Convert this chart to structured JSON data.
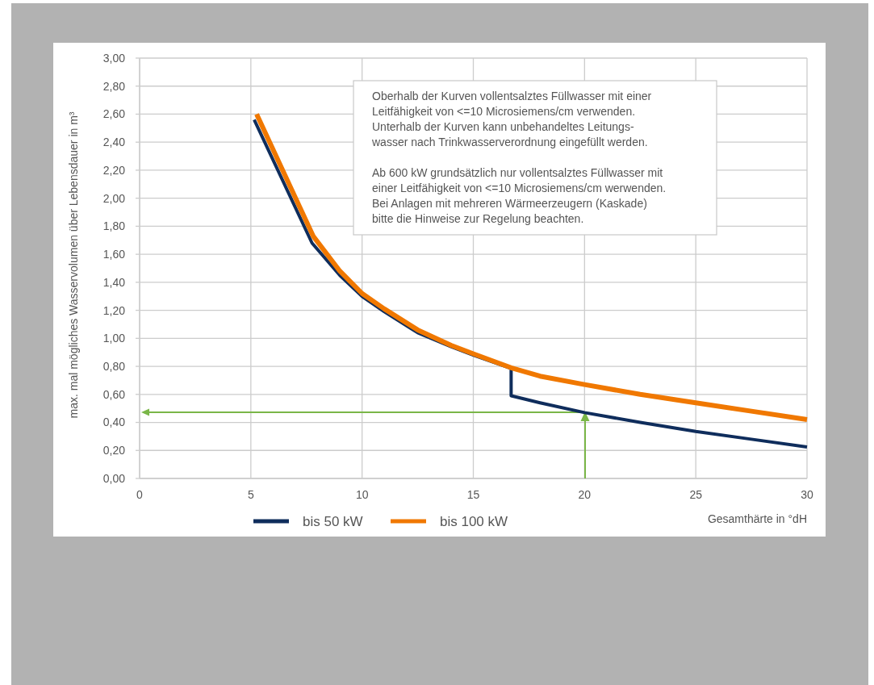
{
  "chart_data": {
    "type": "line",
    "xlabel": "Gesamthärte in °dH",
    "ylabel": "max. mal mögliches Wasservolumen über Lebensdauer in m³",
    "xlim": [
      0,
      30
    ],
    "xticks": [
      0,
      5,
      10,
      15,
      20,
      25,
      30
    ],
    "ylim": [
      0,
      3
    ],
    "yticks": [
      {
        "value": 0,
        "label": "0,00"
      },
      {
        "value": 0.2,
        "label": "0,20"
      },
      {
        "value": 0.4,
        "label": "0,40"
      },
      {
        "value": 0.6,
        "label": "0,60"
      },
      {
        "value": 0.8,
        "label": "0,80"
      },
      {
        "value": 1,
        "label": "1,00"
      },
      {
        "value": 1.2,
        "label": "1,20"
      },
      {
        "value": 1.4,
        "label": "1,40"
      },
      {
        "value": 1.6,
        "label": "1,60"
      },
      {
        "value": 1.8,
        "label": "1,80"
      },
      {
        "value": 2,
        "label": "2,00"
      },
      {
        "value": 2.2,
        "label": "2,20"
      },
      {
        "value": 2.4,
        "label": "2,40"
      },
      {
        "value": 2.6,
        "label": "2,60"
      },
      {
        "value": 2.8,
        "label": "2,80"
      },
      {
        "value": 3,
        "label": "3,00"
      }
    ],
    "grid": true,
    "legend": "bottom",
    "marker": "none",
    "line_style": "solid",
    "annotations": [
      "Oberhalb der Kurven vollentsalztes Füllwasser mit einer\nLeitfähigkeit von <=10 Microsiemens/cm verwenden.\nUnterhalb der Kurven kann unbehandeltes Leitungs-\nwasser nach Trinkwasserverordnung eingefüllt werden.",
      "Ab 600 kW grundsätzlich nur vollentsalztes Füllwasser mit\neiner Leitfähigkeit von <=10 Microsiemens/cm werwenden.\nBei Anlagen mit mehreren Wärmeerzeugern (Kaskade)\nbitte die Hinweise zur Regelung beachten."
    ],
    "series": [
      {
        "name": "bis 50 kW",
        "color": "#0f2d5c",
        "x": [
          5.15,
          7.75,
          9,
          10,
          11,
          12.5,
          14,
          15,
          16.7,
          16.7,
          18,
          20,
          22.5,
          25,
          27.5,
          30
        ],
        "values": [
          2.56,
          1.68,
          1.45,
          1.3,
          1.19,
          1.04,
          0.94,
          0.88,
          0.785,
          0.59,
          0.54,
          0.47,
          0.4,
          0.335,
          0.28,
          0.225
        ]
      },
      {
        "name": "bis 100 kW",
        "color": "#f07800",
        "x": [
          5.26,
          7.8,
          9,
          10,
          11,
          12.5,
          14,
          15,
          16.7,
          18,
          20,
          22.5,
          25,
          27.5,
          30
        ],
        "values": [
          2.6,
          1.73,
          1.48,
          1.32,
          1.21,
          1.06,
          0.95,
          0.89,
          0.79,
          0.73,
          0.67,
          0.6,
          0.54,
          0.48,
          0.42
        ]
      }
    ]
  }
}
